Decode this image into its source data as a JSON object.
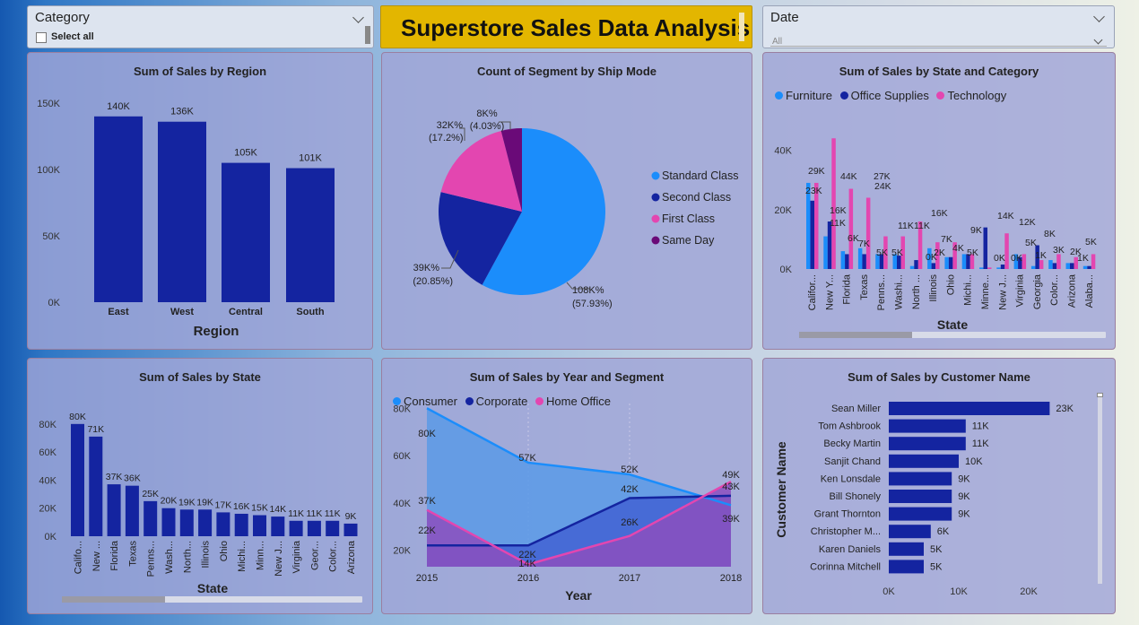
{
  "category_slicer": {
    "label": "Category",
    "select_all": "Select all"
  },
  "date_slicer": {
    "label": "Date",
    "value": "All"
  },
  "report_title": "Superstore Sales Data Analysis",
  "colors": {
    "dark_blue": "#1424a0",
    "light_blue": "#1b8dfb",
    "pink": "#e346b0",
    "purple": "#6a0a78"
  },
  "chart_data": [
    {
      "id": "region",
      "type": "bar",
      "title": "Sum of Sales by Region",
      "xlabel": "Region",
      "ylabel": "",
      "categories": [
        "East",
        "West",
        "Central",
        "South"
      ],
      "values": [
        140,
        136,
        105,
        101
      ],
      "data_labels": [
        "140K",
        "136K",
        "105K",
        "101K"
      ],
      "yticks": [
        "0K",
        "50K",
        "100K",
        "150K"
      ],
      "ylim": [
        0,
        150
      ]
    },
    {
      "id": "shipmode",
      "type": "pie",
      "title": "Count of Segment by Ship Mode",
      "categories": [
        "Standard Class",
        "Second Class",
        "First Class",
        "Same Day"
      ],
      "values": [
        57.93,
        20.85,
        17.2,
        4.03
      ],
      "data_labels": [
        [
          "108K%",
          "(57.93%)"
        ],
        [
          "39K%",
          "(20.85%)"
        ],
        [
          "32K% (17.2%)",
          ""
        ],
        [
          "8K%",
          "(4.03%)"
        ]
      ]
    },
    {
      "id": "state_category",
      "type": "bar",
      "title": "Sum of Sales by State and Category",
      "xlabel": "State",
      "ylabel": "",
      "categories": [
        "Califor...",
        "New Y...",
        "Florida",
        "Texas",
        "Penns...",
        "Washi...",
        "North ...",
        "Illinois",
        "Ohio",
        "Michi...",
        "Minne...",
        "New J...",
        "Virginia",
        "Georgia",
        "Color...",
        "Arizona",
        "Alaba..."
      ],
      "series": [
        {
          "name": "Furniture",
          "values": [
            29,
            11,
            6,
            7,
            5,
            5,
            1,
            7,
            4,
            5,
            0.5,
            0.5,
            5,
            1,
            3,
            2,
            1
          ]
        },
        {
          "name": "Office Supplies",
          "values": [
            23,
            16,
            5,
            5,
            5,
            4.5,
            3,
            2,
            4,
            5,
            14,
            1.5,
            4,
            8,
            2,
            2,
            1
          ]
        },
        {
          "name": "Technology",
          "values": [
            29,
            44,
            27,
            24,
            11,
            11,
            16,
            9,
            9,
            5,
            0.5,
            12,
            5,
            3,
            5,
            4,
            5
          ]
        }
      ],
      "data_labels": [
        "29K",
        "23K",
        "11K",
        "16K",
        "44K",
        "6K",
        "27K",
        "7K",
        "24K",
        "5K",
        "11K",
        "5K",
        "11K",
        "0K",
        "16K",
        "7K",
        "2K",
        "4K",
        "9K",
        "5K",
        "14K",
        "0K",
        "0K",
        "12K",
        "5K",
        "1K",
        "8K",
        "3K",
        "2K",
        "1K",
        "5K"
      ],
      "yticks": [
        "0K",
        "20K",
        "40K"
      ],
      "ylim": [
        0,
        48
      ]
    },
    {
      "id": "state",
      "type": "bar",
      "title": "Sum of Sales by State",
      "xlabel": "State",
      "ylabel": "",
      "categories": [
        "Califo...",
        "New ...",
        "Florida",
        "Texas",
        "Penns...",
        "Wash...",
        "North...",
        "Illinois",
        "Ohio",
        "Michi...",
        "Minn...",
        "New J...",
        "Virginia",
        "Geor...",
        "Color...",
        "Arizona"
      ],
      "values": [
        80,
        71,
        37,
        36,
        25,
        20,
        19,
        19,
        17,
        16,
        15,
        14,
        11,
        11,
        11,
        9
      ],
      "data_labels": [
        "80K",
        "71K",
        "37K",
        "36K",
        "25K",
        "20K",
        "19K",
        "19K",
        "17K",
        "16K",
        "15K",
        "14K",
        "11K",
        "11K",
        "11K",
        "9K"
      ],
      "yticks": [
        "0K",
        "20K",
        "40K",
        "60K",
        "80K"
      ],
      "ylim": [
        0,
        85
      ]
    },
    {
      "id": "year_segment",
      "type": "area",
      "title": "Sum of Sales by Year and Segment",
      "xlabel": "Year",
      "ylabel": "",
      "x": [
        "2015",
        "2016",
        "2017",
        "2018"
      ],
      "series": [
        {
          "name": "Consumer",
          "values": [
            80,
            57,
            52,
            39
          ]
        },
        {
          "name": "Corporate",
          "values": [
            22,
            22,
            42,
            43
          ]
        },
        {
          "name": "Home Office",
          "values": [
            37,
            14,
            26,
            49
          ]
        }
      ],
      "data_labels": {
        "Consumer": [
          "80K",
          "57K",
          "52K",
          "39K"
        ],
        "Corporate": [
          "22K",
          "22K",
          "42K",
          "43K"
        ],
        "Home Office": [
          "37K",
          "14K",
          "26K",
          "49K"
        ]
      },
      "yticks": [
        "20K",
        "40K",
        "60K",
        "80K"
      ],
      "ylim": [
        13,
        82
      ]
    },
    {
      "id": "customer",
      "type": "bar",
      "title": "Sum of Sales by Customer Name",
      "xlabel": "",
      "ylabel": "Customer Name",
      "categories": [
        "Sean Miller",
        "Tom Ashbrook",
        "Becky Martin",
        "Sanjit Chand",
        "Ken Lonsdale",
        "Bill Shonely",
        "Grant Thornton",
        "Christopher M...",
        "Karen Daniels",
        "Corinna Mitchell"
      ],
      "values": [
        23,
        11,
        11,
        10,
        9,
        9,
        9,
        6,
        5,
        5
      ],
      "data_labels": [
        "23K",
        "11K",
        "11K",
        "10K",
        "9K",
        "9K",
        "9K",
        "6K",
        "5K",
        "5K"
      ],
      "xticks": [
        "0K",
        "10K",
        "20K"
      ],
      "xlim": [
        0,
        25
      ]
    }
  ]
}
